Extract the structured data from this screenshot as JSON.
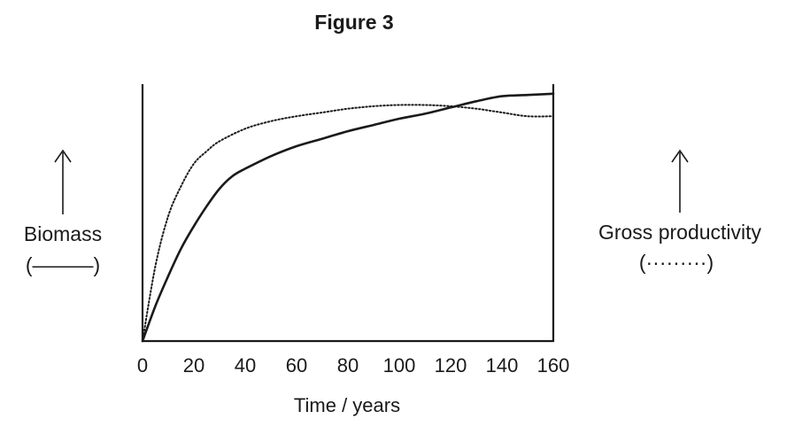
{
  "figure_title": "Figure 3",
  "chart_data": {
    "type": "line",
    "xlabel": "Time / years",
    "xlim": [
      0,
      160
    ],
    "x_ticks": [
      "0",
      "20",
      "40",
      "60",
      "80",
      "100",
      "120",
      "140",
      "160"
    ],
    "left_axis_label": "Biomass",
    "left_legend_key": "(———)",
    "right_axis_label": "Gross productivity",
    "right_legend_key": "(·········)",
    "y_scale": "unlabelled, increasing upward (relative units 0–1)",
    "ylim": [
      0,
      1
    ],
    "grid": false,
    "series": [
      {
        "style": "solid",
        "axis": "left",
        "x": [
          0,
          5,
          10,
          15,
          20,
          25,
          30,
          35,
          40,
          50,
          60,
          70,
          80,
          90,
          100,
          110,
          120,
          130,
          140,
          150,
          160
        ],
        "y": [
          0,
          0.14,
          0.26,
          0.37,
          0.46,
          0.54,
          0.61,
          0.66,
          0.69,
          0.74,
          0.78,
          0.81,
          0.84,
          0.865,
          0.89,
          0.91,
          0.935,
          0.96,
          0.98,
          0.985,
          0.99
        ]
      },
      {
        "style": "dotted",
        "axis": "right",
        "x": [
          0,
          5,
          10,
          15,
          20,
          25,
          30,
          40,
          50,
          60,
          70,
          80,
          90,
          100,
          110,
          120,
          130,
          140,
          150,
          160
        ],
        "y": [
          0,
          0.3,
          0.5,
          0.62,
          0.71,
          0.76,
          0.8,
          0.85,
          0.88,
          0.9,
          0.915,
          0.93,
          0.94,
          0.945,
          0.945,
          0.94,
          0.93,
          0.915,
          0.9,
          0.9
        ]
      }
    ]
  }
}
